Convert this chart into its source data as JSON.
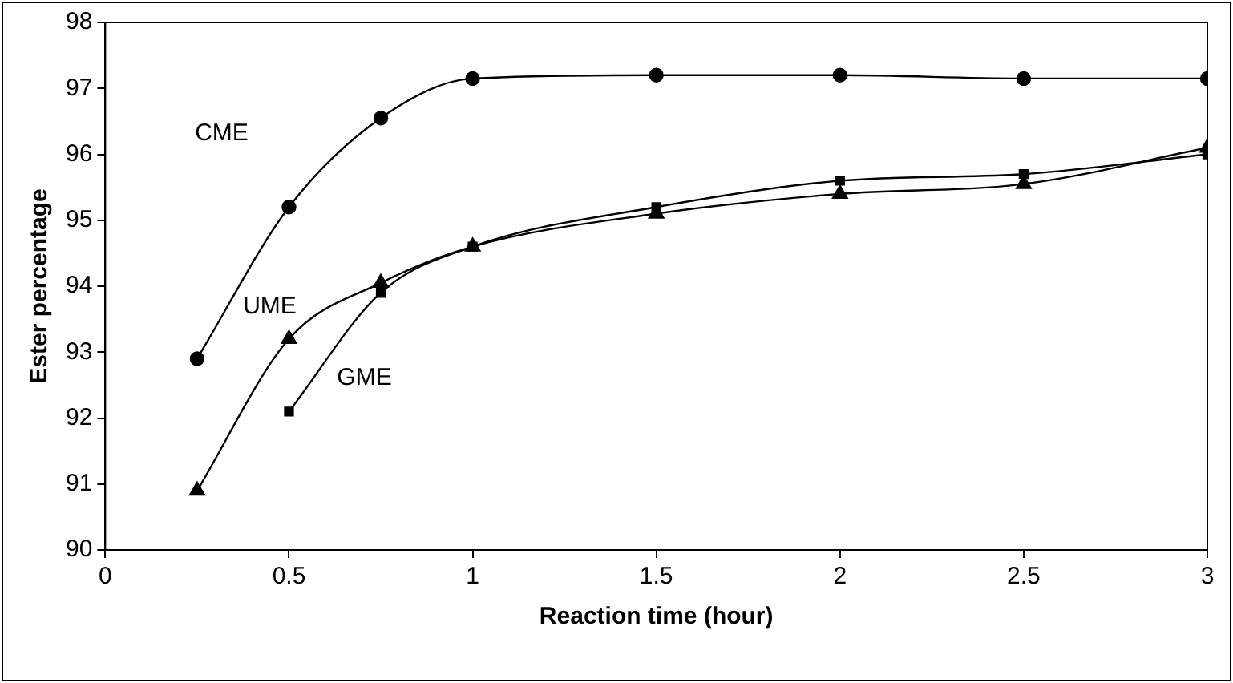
{
  "chart_data": {
    "type": "line",
    "xlabel": "Reaction time (hour)",
    "ylabel": "Ester percentage",
    "xlim": [
      0,
      3
    ],
    "xticks": [
      0,
      0.5,
      1,
      1.5,
      2,
      2.5,
      3
    ],
    "ylim": [
      90,
      98
    ],
    "yticks": [
      90,
      91,
      92,
      93,
      94,
      95,
      96,
      97,
      98
    ],
    "grid": false,
    "legend": false,
    "series": [
      {
        "name": "CME",
        "color": "#000000",
        "marker": "circle",
        "x": [
          0.25,
          0.5,
          0.75,
          1,
          1.5,
          2,
          2.5,
          3
        ],
        "values": [
          92.9,
          95.2,
          96.55,
          97.15,
          97.2,
          97.2,
          97.15,
          97.15
        ]
      },
      {
        "name": "UME",
        "color": "#000000",
        "marker": "triangle",
        "x": [
          0.25,
          0.5,
          0.75,
          1,
          1.5,
          2,
          2.5,
          3
        ],
        "values": [
          90.9,
          93.2,
          94.05,
          94.6,
          95.1,
          95.4,
          95.55,
          96.1
        ]
      },
      {
        "name": "GME",
        "color": "#000000",
        "marker": "square",
        "x": [
          0.5,
          0.75,
          1,
          1.5,
          2,
          2.5,
          3
        ],
        "values": [
          92.1,
          93.9,
          94.6,
          95.2,
          95.6,
          95.7,
          96.0
        ]
      }
    ]
  }
}
